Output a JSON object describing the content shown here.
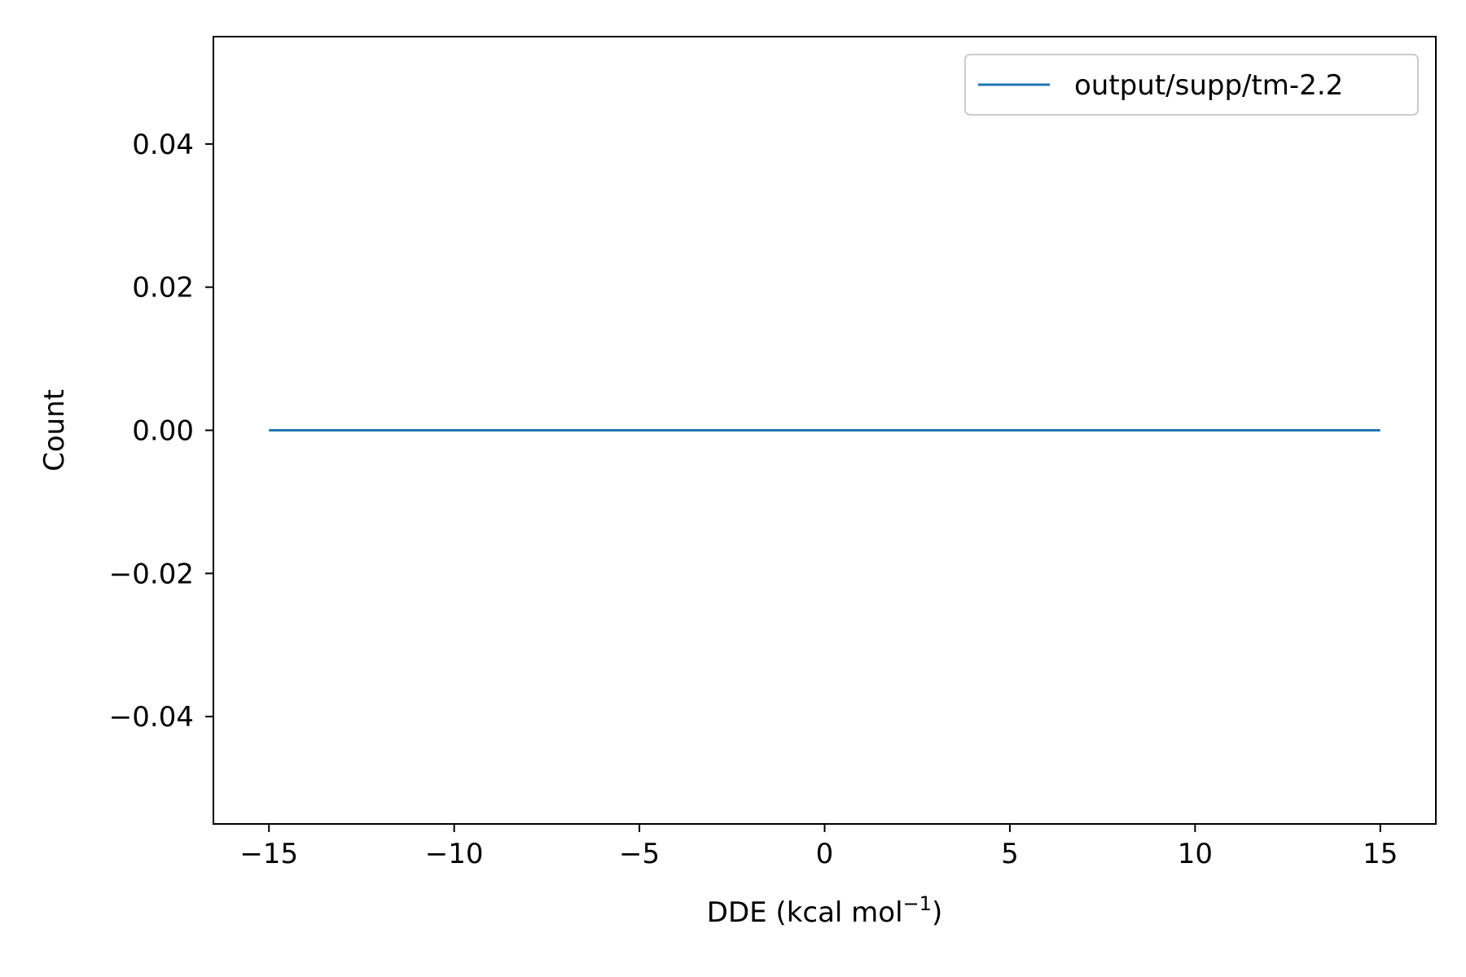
{
  "chart_data": {
    "type": "line",
    "title": "",
    "xlabel": "DDE (kcal mol",
    "xlabel_sup": "−1",
    "xlabel_close": ")",
    "ylabel": "Count",
    "xlim": [
      -16.5,
      16.5
    ],
    "ylim": [
      -0.055,
      0.055
    ],
    "xticks": [
      -15,
      -10,
      -5,
      0,
      5,
      10,
      15
    ],
    "xtick_labels": [
      "−15",
      "−10",
      "−5",
      "0",
      "5",
      "10",
      "15"
    ],
    "yticks": [
      -0.04,
      -0.02,
      0.0,
      0.02,
      0.04
    ],
    "ytick_labels": [
      "−0.04",
      "−0.02",
      "0.00",
      "0.02",
      "0.04"
    ],
    "grid": false,
    "legend_position": "top-right",
    "series": [
      {
        "name": "output/supp/tm-2.2",
        "color": "#1f77b4",
        "x": [
          -15,
          15
        ],
        "y": [
          0,
          0
        ]
      }
    ]
  }
}
